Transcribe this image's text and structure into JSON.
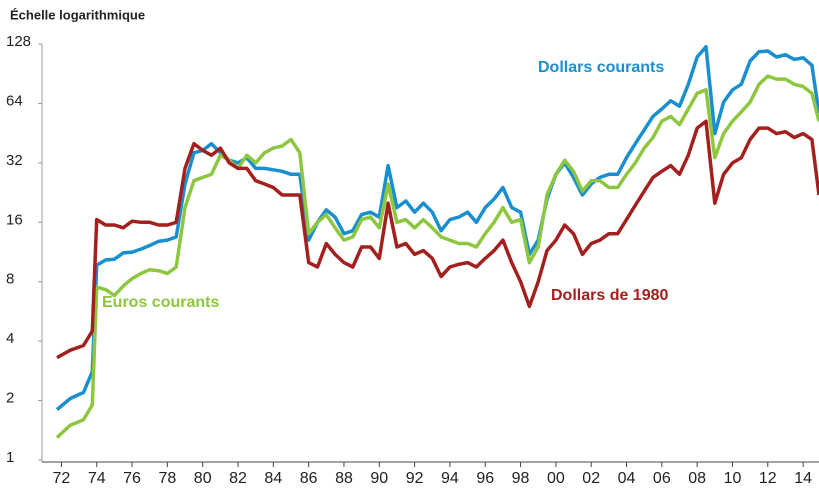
{
  "chart_data": {
    "type": "line",
    "subtitle": "Échelle logarithmique",
    "ylog": true,
    "ylim": [
      1,
      128
    ],
    "yticks": [
      1,
      2,
      4,
      8,
      16,
      32,
      64,
      128
    ],
    "xlim": [
      1970.9,
      2014.9
    ],
    "xticks": [
      {
        "value": 1972,
        "label": "72"
      },
      {
        "value": 1974,
        "label": "74"
      },
      {
        "value": 1976,
        "label": "76"
      },
      {
        "value": 1978,
        "label": "78"
      },
      {
        "value": 1980,
        "label": "80"
      },
      {
        "value": 1982,
        "label": "82"
      },
      {
        "value": 1984,
        "label": "84"
      },
      {
        "value": 1986,
        "label": "86"
      },
      {
        "value": 1988,
        "label": "88"
      },
      {
        "value": 1990,
        "label": "90"
      },
      {
        "value": 1992,
        "label": "92"
      },
      {
        "value": 1994,
        "label": "94"
      },
      {
        "value": 1996,
        "label": "96"
      },
      {
        "value": 1998,
        "label": "98"
      },
      {
        "value": 2000,
        "label": "00"
      },
      {
        "value": 2002,
        "label": "02"
      },
      {
        "value": 2004,
        "label": "04"
      },
      {
        "value": 2006,
        "label": "06"
      },
      {
        "value": 2008,
        "label": "08"
      },
      {
        "value": 2010,
        "label": "10"
      },
      {
        "value": 2012,
        "label": "12"
      },
      {
        "value": 2014,
        "label": "14"
      }
    ],
    "x": [
      1971.75,
      1972.5,
      1973.25,
      1973.75,
      1974,
      1974.5,
      1975,
      1975.5,
      1976,
      1976.5,
      1977,
      1977.5,
      1978,
      1978.5,
      1979,
      1979.5,
      1980,
      1980.5,
      1981,
      1981.5,
      1982,
      1982.5,
      1983,
      1983.5,
      1984,
      1984.5,
      1985,
      1985.5,
      1986,
      1986.5,
      1987,
      1987.5,
      1988,
      1988.5,
      1989,
      1989.5,
      1990,
      1990.5,
      1991,
      1991.5,
      1992,
      1992.5,
      1993,
      1993.5,
      1994,
      1994.5,
      1995,
      1995.5,
      1996,
      1996.5,
      1997,
      1997.5,
      1998,
      1998.5,
      1999,
      1999.5,
      2000,
      2000.5,
      2001,
      2001.5,
      2002,
      2002.5,
      2003,
      2003.5,
      2004,
      2004.5,
      2005,
      2005.5,
      2006,
      2006.5,
      2007,
      2007.5,
      2008,
      2008.5,
      2009,
      2009.5,
      2010,
      2010.5,
      2011,
      2011.5,
      2012,
      2012.5,
      2013,
      2013.5,
      2014,
      2014.5,
      2014.9
    ],
    "series": [
      {
        "name": "Dollars courants",
        "color": "#1a8fd0",
        "values": [
          1.8,
          2.05,
          2.2,
          2.8,
          9.7,
          10.3,
          10.4,
          11.2,
          11.3,
          11.7,
          12.2,
          12.8,
          13,
          13.5,
          25,
          36,
          37,
          40,
          36,
          33,
          32,
          34,
          30,
          30,
          29.5,
          29,
          28,
          28,
          13,
          16,
          18.5,
          17,
          14,
          14.5,
          17.5,
          18,
          17,
          31,
          19,
          20.5,
          18,
          20,
          18,
          14.5,
          16.5,
          17,
          18,
          16,
          19,
          21,
          24,
          19,
          18,
          11,
          13,
          21,
          28,
          32,
          27,
          22,
          25,
          27,
          28,
          28,
          34,
          40,
          47,
          55,
          60,
          66,
          62,
          80,
          110,
          124,
          45,
          65,
          75,
          80,
          105,
          117,
          118,
          110,
          113,
          107,
          109,
          100,
          57
        ]
      },
      {
        "name": "Euros courants",
        "color": "#8dc63f",
        "values": [
          1.3,
          1.5,
          1.6,
          1.9,
          7.5,
          7.3,
          6.8,
          7.6,
          8.3,
          8.8,
          9.2,
          9.1,
          8.8,
          9.5,
          19,
          26,
          27,
          28,
          35,
          33,
          30,
          35,
          32,
          36,
          38,
          39,
          42,
          36,
          14,
          16,
          17.5,
          15,
          13,
          13.5,
          16.5,
          17,
          15,
          25,
          16,
          16.5,
          15,
          16.5,
          15,
          13.5,
          13,
          12.5,
          12.5,
          12,
          14,
          16,
          19,
          16,
          16.5,
          10,
          12,
          22,
          28,
          33,
          29,
          23,
          26,
          26,
          24,
          24,
          28,
          32,
          38,
          43,
          52,
          55,
          50,
          60,
          72,
          75,
          34,
          45,
          52,
          58,
          65,
          80,
          88,
          85,
          85,
          80,
          78,
          72,
          52
        ]
      },
      {
        "name": "Dollars de 1980",
        "color": "#a3201f",
        "values": [
          3.3,
          3.6,
          3.8,
          4.5,
          16.5,
          15.5,
          15.5,
          15,
          16.2,
          16,
          16,
          15.5,
          15.5,
          16,
          30,
          40,
          37,
          35,
          38,
          32,
          30,
          30,
          26,
          25,
          24,
          22,
          22,
          22,
          10,
          9.5,
          12.5,
          11,
          10,
          9.5,
          12,
          12,
          10.5,
          20,
          12,
          12.5,
          11,
          11.5,
          10.5,
          8.5,
          9.5,
          9.8,
          10,
          9.5,
          10.5,
          11.5,
          13,
          10,
          8,
          6,
          8,
          11.5,
          13,
          15.5,
          14,
          11,
          12.5,
          13,
          14,
          14,
          16.5,
          19.5,
          23,
          27,
          29,
          31,
          28,
          35,
          48,
          52,
          20,
          28,
          32,
          34,
          42,
          48,
          48,
          45,
          46,
          43,
          45,
          42,
          22
        ]
      }
    ]
  }
}
